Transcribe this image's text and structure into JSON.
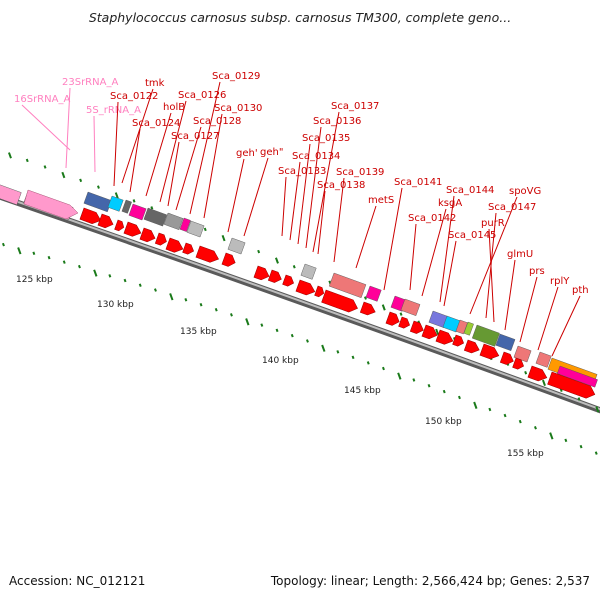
{
  "title": "Staphylococcus carnosus subsp. carnosus TM300, complete geno...",
  "footer": {
    "accession": "Accession: NC_012121",
    "topology": "Topology: linear; Length: 2,566,424 bp; Genes: 2,537"
  },
  "scale_labels": [
    "125 kbp",
    "130 kbp",
    "135 kbp",
    "140 kbp",
    "145 kbp",
    "150 kbp",
    "155 kbp"
  ],
  "gene_labels": [
    {
      "text": "16SrRNA_A",
      "color": "#ff7fbf"
    },
    {
      "text": "23SrRNA_A",
      "color": "#ff7fbf"
    },
    {
      "text": "5S_rRNA_A",
      "color": "#ff7fbf"
    },
    {
      "text": "tmk",
      "color": "#cc0000"
    },
    {
      "text": "Sca_0122",
      "color": "#cc0000"
    },
    {
      "text": "Sca_0124",
      "color": "#cc0000"
    },
    {
      "text": "holB",
      "color": "#cc0000"
    },
    {
      "text": "Sca_0126",
      "color": "#cc0000"
    },
    {
      "text": "Sca_0127",
      "color": "#cc0000"
    },
    {
      "text": "Sca_0128",
      "color": "#cc0000"
    },
    {
      "text": "Sca_0129",
      "color": "#cc0000"
    },
    {
      "text": "Sca_0130",
      "color": "#cc0000"
    },
    {
      "text": "geh'",
      "color": "#cc0000"
    },
    {
      "text": "geh\"",
      "color": "#cc0000"
    },
    {
      "text": "Sca_0133",
      "color": "#cc0000"
    },
    {
      "text": "Sca_0134",
      "color": "#cc0000"
    },
    {
      "text": "Sca_0135",
      "color": "#cc0000"
    },
    {
      "text": "Sca_0136",
      "color": "#cc0000"
    },
    {
      "text": "Sca_0137",
      "color": "#cc0000"
    },
    {
      "text": "Sca_0138",
      "color": "#cc0000"
    },
    {
      "text": "Sca_0139",
      "color": "#cc0000"
    },
    {
      "text": "metS",
      "color": "#cc0000"
    },
    {
      "text": "Sca_0141",
      "color": "#cc0000"
    },
    {
      "text": "Sca_0142",
      "color": "#cc0000"
    },
    {
      "text": "ksgA",
      "color": "#cc0000"
    },
    {
      "text": "Sca_0144",
      "color": "#cc0000"
    },
    {
      "text": "Sca_0145",
      "color": "#cc0000"
    },
    {
      "text": "spoVG",
      "color": "#cc0000"
    },
    {
      "text": "Sca_0147",
      "color": "#cc0000"
    },
    {
      "text": "purR",
      "color": "#cc0000"
    },
    {
      "text": "glmU",
      "color": "#cc0000"
    },
    {
      "text": "prs",
      "color": "#cc0000"
    },
    {
      "text": "rplY",
      "color": "#cc0000"
    },
    {
      "text": "pth",
      "color": "#cc0000"
    }
  ],
  "colors": {
    "backbone": "#888888",
    "gene_arrow": "#ff0000",
    "rrna": "#ff99cc",
    "tick": "#1a7a1a"
  }
}
